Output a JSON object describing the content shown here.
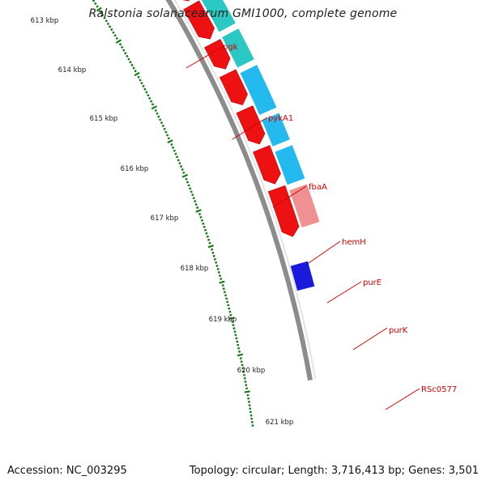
{
  "title": "Ralstonia solanacearum GMI1000, complete genome",
  "accession_text": "Accession: NC_003295",
  "summary_text": "Topology: circular; Length: 3,716,413 bp; Genes: 3,501",
  "colors": {
    "background": "#ffffff",
    "tick": "#1a7a1a",
    "backbone": "#8c8c8c",
    "cds_red": "#ee1111",
    "gene_teal": "#1fc4c0",
    "gene_blue": "#18b6ee",
    "gene_pink": "#ef8a8a",
    "gene_grey": "#c8c8c8",
    "label_red": "#d40000"
  },
  "scale_labels": [
    "613 kbp",
    "614 kbp",
    "615 kbp",
    "616 kbp",
    "617 kbp",
    "618 kbp",
    "619 kbp",
    "620 kbp",
    "621 kbp"
  ],
  "gene_labels": [
    "pgk",
    "pykA1",
    "fbaA",
    "hemH",
    "purE",
    "purK",
    "RSc0577"
  ]
}
